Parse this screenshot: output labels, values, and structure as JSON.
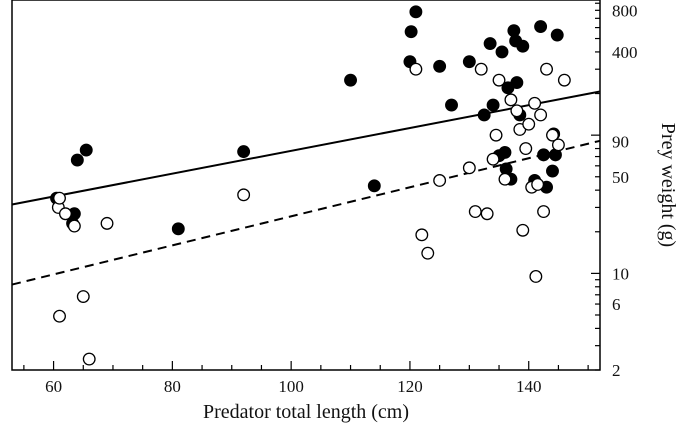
{
  "chart_data": {
    "type": "scatter",
    "title": "",
    "xlabel": "Predator total length (cm)",
    "ylabel": "Prey weight (g)",
    "x_ticks": [
      60,
      80,
      100,
      120,
      140
    ],
    "y_ticks": [
      2,
      6,
      10,
      50,
      90,
      400,
      800
    ],
    "xlim": [
      53,
      152
    ],
    "ylim_log": [
      2,
      950
    ],
    "y_scale": "log",
    "grid": false,
    "series": [
      {
        "marker": "filled-circle",
        "color": "#000000",
        "points": [
          [
            60.5,
            35
          ],
          [
            63.5,
            27
          ],
          [
            63.2,
            23
          ],
          [
            64,
            66
          ],
          [
            65.5,
            78
          ],
          [
            81,
            21
          ],
          [
            92,
            76
          ],
          [
            110,
            250
          ],
          [
            114,
            43
          ],
          [
            120,
            340
          ],
          [
            120.2,
            560
          ],
          [
            121,
            780
          ],
          [
            125,
            315
          ],
          [
            127,
            165
          ],
          [
            130,
            340
          ],
          [
            132.5,
            140
          ],
          [
            133.5,
            460
          ],
          [
            134,
            165
          ],
          [
            135,
            71
          ],
          [
            135.5,
            400
          ],
          [
            136,
            75
          ],
          [
            136.2,
            57
          ],
          [
            136.5,
            220
          ],
          [
            137,
            48
          ],
          [
            137.5,
            570
          ],
          [
            137.8,
            480
          ],
          [
            138,
            240
          ],
          [
            138.5,
            140
          ],
          [
            139,
            440
          ],
          [
            141,
            47
          ],
          [
            142,
            610
          ],
          [
            142.5,
            72
          ],
          [
            143,
            42
          ],
          [
            144,
            55
          ],
          [
            144.2,
            102
          ],
          [
            144.5,
            72
          ],
          [
            144.8,
            530
          ]
        ]
      },
      {
        "marker": "open-circle",
        "color": "#000000",
        "points": [
          [
            60.8,
            30
          ],
          [
            61,
            35
          ],
          [
            62,
            27
          ],
          [
            63.5,
            22
          ],
          [
            61,
            4.9
          ],
          [
            65,
            6.8
          ],
          [
            66,
            2.4
          ],
          [
            69,
            23
          ],
          [
            92,
            37
          ],
          [
            121,
            300
          ],
          [
            122,
            19
          ],
          [
            123,
            14
          ],
          [
            125,
            47
          ],
          [
            130,
            58
          ],
          [
            131,
            28
          ],
          [
            132,
            300
          ],
          [
            133,
            27
          ],
          [
            134,
            67
          ],
          [
            134.5,
            100
          ],
          [
            135,
            250
          ],
          [
            136,
            48
          ],
          [
            137,
            180
          ],
          [
            138,
            150
          ],
          [
            138.5,
            110
          ],
          [
            139,
            20.5
          ],
          [
            139.5,
            80
          ],
          [
            140,
            120
          ],
          [
            140.5,
            42
          ],
          [
            141,
            170
          ],
          [
            141.2,
            9.5
          ],
          [
            141.5,
            44
          ],
          [
            142,
            140
          ],
          [
            142.5,
            28
          ],
          [
            143,
            300
          ],
          [
            144,
            100
          ],
          [
            145,
            85
          ],
          [
            146,
            250
          ]
        ]
      }
    ],
    "lines": [
      {
        "style": "solid",
        "color": "#000000",
        "from": [
          53,
          31.5
        ],
        "to": [
          152,
          207
        ]
      },
      {
        "style": "dashed",
        "color": "#000000",
        "from": [
          53,
          8.3
        ],
        "to": [
          152,
          91
        ]
      }
    ]
  }
}
